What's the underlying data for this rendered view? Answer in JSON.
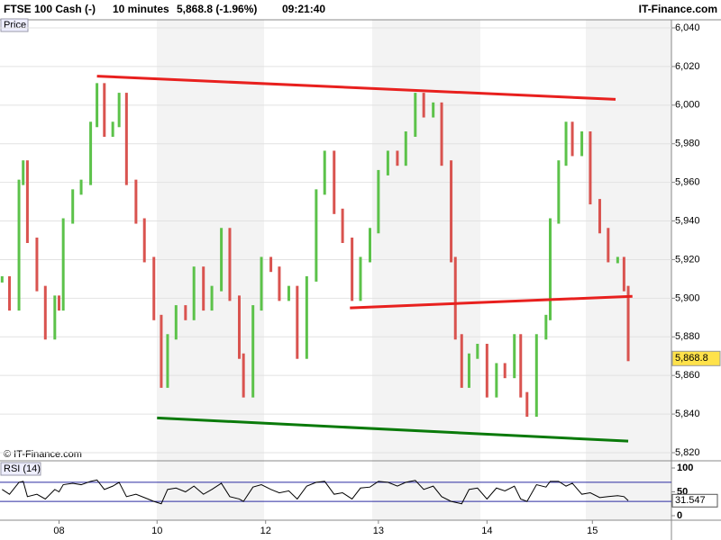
{
  "header": {
    "instrument": "FTSE 100 Cash (-)",
    "interval": "10 minutes",
    "quote": "5,868.8 (-1.96%)",
    "time": "09:21:40",
    "site": "IT-Finance.com",
    "price_label": "Price",
    "copyright": "© IT-Finance.com"
  },
  "chart_data": [
    {
      "type": "candlestick",
      "color_up": "#5cc24a",
      "color_down": "#d9534f",
      "x": [
        -0.54,
        -0.47,
        -0.38,
        -0.34,
        -0.3,
        -0.21,
        -0.13,
        -0.04,
        0,
        0.04,
        0.13,
        0.21,
        0.3,
        0.36,
        0.43,
        0.51,
        0.57,
        0.64,
        0.73,
        0.81,
        0.9,
        0.97,
        1.03,
        1.11,
        1.2,
        1.28,
        1.37,
        1.45,
        1.54,
        1.62,
        1.71,
        1.75,
        1.84,
        1.92,
        2.01,
        2.09,
        2.18,
        2.26,
        2.35,
        2.44,
        2.52,
        2.61,
        2.69,
        2.78,
        2.86,
        2.95,
        3.03,
        3.12,
        3.21,
        3.29,
        3.38,
        3.46,
        3.55,
        3.63,
        3.72,
        3.76,
        3.82,
        3.89,
        3.97,
        4.06,
        4.15,
        4.23,
        4.32,
        4.38,
        4.44,
        4.53,
        4.62,
        4.66,
        4.74,
        4.81,
        4.87,
        4.96,
        5.04,
        5.13,
        5.21,
        5.3,
        5.36,
        5.4
      ],
      "values": [
        5910,
        5895,
        5960,
        5970,
        5930,
        5905,
        5880,
        5900,
        5895,
        5940,
        5955,
        5960,
        5990,
        6010,
        5985,
        5990,
        6005,
        5960,
        5940,
        5920,
        5890,
        5855,
        5880,
        5895,
        5890,
        5915,
        5895,
        5905,
        5935,
        5900,
        5870,
        5850,
        5895,
        5920,
        5915,
        5900,
        5905,
        5870,
        5910,
        5955,
        5975,
        5945,
        5930,
        5900,
        5920,
        5935,
        5965,
        5975,
        5970,
        5985,
        6005,
        5995,
        6000,
        5970,
        5920,
        5880,
        5855,
        5870,
        5875,
        5850,
        5865,
        5860,
        5880,
        5850,
        5840,
        5880,
        5890,
        5940,
        5970,
        5990,
        5975,
        5985,
        5950,
        5935,
        5920,
        5920,
        5905,
        5868.8
      ],
      "last_label": "5,868.8",
      "xlim": [
        -0.56,
        5.81
      ],
      "ylim": [
        5820,
        6040
      ],
      "yticks": [
        {
          "value": 5820,
          "label": "5,820"
        },
        {
          "value": 5840,
          "label": "5,840"
        },
        {
          "value": 5860,
          "label": "5,860"
        },
        {
          "value": 5880,
          "label": "5,880"
        },
        {
          "value": 5900,
          "label": "5,900"
        },
        {
          "value": 5920,
          "label": "5,920"
        },
        {
          "value": 5940,
          "label": "5,940"
        },
        {
          "value": 5960,
          "label": "5,960"
        },
        {
          "value": 5980,
          "label": "5,980"
        },
        {
          "value": 6000,
          "label": "6,000"
        },
        {
          "value": 6020,
          "label": "6,020"
        },
        {
          "value": 6040,
          "label": "6,040"
        }
      ],
      "xticks": [
        {
          "value": 0,
          "label": "08"
        },
        {
          "value": 0.93,
          "label": "10"
        },
        {
          "value": 1.96,
          "label": "12"
        },
        {
          "value": 3.03,
          "label": "13"
        },
        {
          "value": 4.06,
          "label": "14"
        },
        {
          "value": 5.06,
          "label": "15"
        }
      ],
      "grid": true,
      "trendlines": [
        {
          "color": "#e8201e",
          "x": [
            0.36,
            5.28
          ],
          "y": [
            6015,
            6003
          ]
        },
        {
          "color": "#e8201e",
          "x": [
            2.76,
            5.44
          ],
          "y": [
            5895,
            5901
          ]
        },
        {
          "color": "#0a7a0a",
          "x": [
            0.93,
            5.4
          ],
          "y": [
            5838,
            5826
          ]
        }
      ]
    },
    {
      "type": "line",
      "title": "RSI (14)",
      "color": "#000000",
      "values": [
        55,
        45,
        70,
        72,
        40,
        45,
        35,
        55,
        50,
        65,
        68,
        65,
        72,
        75,
        55,
        62,
        70,
        40,
        45,
        38,
        30,
        25,
        55,
        58,
        50,
        62,
        45,
        55,
        68,
        40,
        35,
        30,
        60,
        65,
        55,
        48,
        52,
        35,
        62,
        70,
        72,
        45,
        48,
        35,
        58,
        60,
        72,
        70,
        62,
        70,
        74,
        55,
        62,
        40,
        30,
        28,
        25,
        55,
        58,
        35,
        58,
        52,
        62,
        35,
        30,
        65,
        60,
        72,
        72,
        62,
        68,
        45,
        48,
        38,
        40,
        42,
        40,
        31.547
      ],
      "ylim": [
        0,
        100
      ],
      "yticks": [
        0,
        50,
        100
      ],
      "levels": [
        30,
        70
      ],
      "level_color": "#2a2aa0"
    }
  ]
}
